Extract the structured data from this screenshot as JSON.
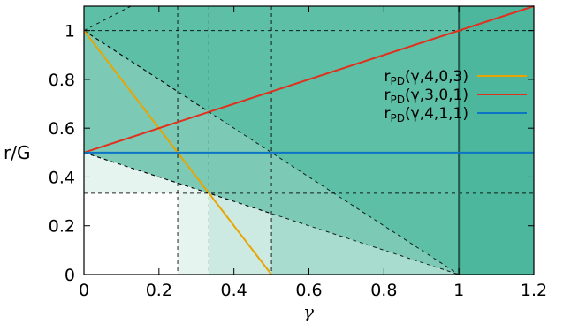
{
  "chart_data": {
    "type": "line",
    "xlabel": "γ",
    "ylabel": "r/G",
    "xlim": [
      0,
      1.2
    ],
    "ylim": [
      0,
      1.1
    ],
    "xticks": [
      "0",
      "0.2",
      "0.4",
      "0.6",
      "0.8",
      "1",
      "1.2"
    ],
    "yticks": [
      "0",
      "0.2",
      "0.4",
      "0.6",
      "0.8",
      "1"
    ],
    "grid": false,
    "legend_position": "top-right",
    "colors": {
      "region_1": "#e6f4f0",
      "region_2": "#cdeae2",
      "region_3": "#a7dccf",
      "region_4": "#7ccab6",
      "region_5": "#5dbfa5",
      "region_6": "#4db79d",
      "vertical_solid": "#1f5a4a"
    },
    "series": [
      {
        "name": "r_PD(γ,4,0,3)",
        "label_main": "r",
        "label_sub": "PD",
        "label_args": "(γ,4,0,3)",
        "color": "#e8a400",
        "x": [
          0,
          0.5
        ],
        "y": [
          1,
          0
        ]
      },
      {
        "name": "r_PD(γ,3,0,1)",
        "label_main": "r",
        "label_sub": "PD",
        "label_args": "(γ,3,0,1)",
        "color": "#e0301e",
        "x": [
          0,
          1.2
        ],
        "y": [
          0.5,
          1.1
        ]
      },
      {
        "name": "r_PD(γ,4,1,1)",
        "label_main": "r",
        "label_sub": "PD",
        "label_args": "(γ,4,1,1)",
        "color": "#0b74c4",
        "x": [
          0,
          1.2
        ],
        "y": [
          0.5,
          0.5
        ]
      }
    ],
    "reference_lines": {
      "vertical_dashed_x": [
        0.25,
        0.3333,
        0.5
      ],
      "vertical_solid_x": [
        1
      ],
      "horizontal_dashed_y": [
        1,
        0.3333
      ],
      "dashed_segments": [
        {
          "x": [
            0,
            1
          ],
          "y": [
            0.5,
            0
          ]
        },
        {
          "x": [
            0,
            1
          ],
          "y": [
            1,
            0
          ]
        },
        {
          "x": [
            0,
            0.5
          ],
          "y": [
            0.5,
            0.25
          ]
        },
        {
          "x": [
            0,
            0.5
          ],
          "y": [
            0.5,
            0.75
          ]
        },
        {
          "x": [
            0,
            0.333
          ],
          "y": [
            1,
            0.667
          ]
        },
        {
          "x": [
            0,
            0.125
          ],
          "y": [
            1,
            1.2
          ]
        }
      ]
    }
  }
}
